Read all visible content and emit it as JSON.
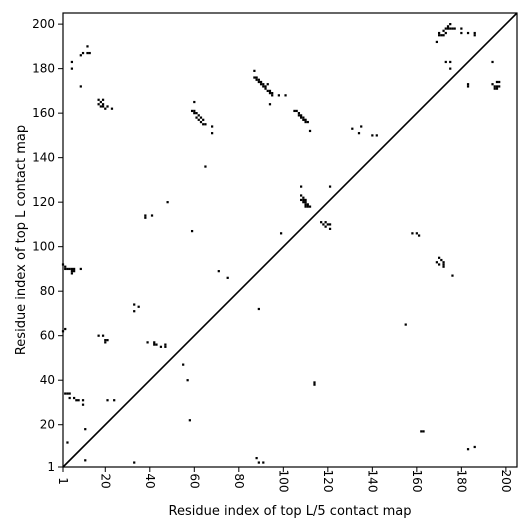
{
  "chart_data": {
    "type": "scatter",
    "title": "",
    "xlabel": "Residue index of top L/5 contact map",
    "ylabel": "Residue index of top L contact map",
    "xlim": [
      1,
      205
    ],
    "ylim": [
      1,
      205
    ],
    "xticks": [
      "1",
      "20",
      "40",
      "60",
      "80",
      "100",
      "120",
      "140",
      "160",
      "180",
      "200"
    ],
    "xtick_values": [
      1,
      20,
      40,
      60,
      80,
      100,
      120,
      140,
      160,
      180,
      200
    ],
    "yticks": [
      "1",
      "20",
      "40",
      "60",
      "80",
      "100",
      "120",
      "140",
      "160",
      "180",
      "200"
    ],
    "ytick_values": [
      1,
      20,
      40,
      60,
      80,
      100,
      120,
      140,
      160,
      180,
      200
    ],
    "grid": false,
    "marker_color": "#000000",
    "diagonal": {
      "from": [
        1,
        1
      ],
      "to": [
        205,
        205
      ]
    },
    "points": [
      [
        5,
        183
      ],
      [
        5,
        180
      ],
      [
        9,
        186
      ],
      [
        9,
        172
      ],
      [
        12,
        190
      ],
      [
        12,
        187
      ],
      [
        13,
        187
      ],
      [
        10,
        187
      ],
      [
        17,
        166
      ],
      [
        17,
        164
      ],
      [
        18,
        165
      ],
      [
        18,
        163
      ],
      [
        19,
        164
      ],
      [
        19,
        163
      ],
      [
        20,
        162
      ],
      [
        21,
        163
      ],
      [
        23,
        162
      ],
      [
        19,
        166
      ],
      [
        60,
        161
      ],
      [
        60,
        160
      ],
      [
        61,
        160
      ],
      [
        61,
        158
      ],
      [
        62,
        159
      ],
      [
        62,
        157
      ],
      [
        63,
        158
      ],
      [
        63,
        156
      ],
      [
        64,
        157
      ],
      [
        64,
        155
      ],
      [
        65,
        155
      ],
      [
        59,
        161
      ],
      [
        60,
        165
      ],
      [
        68,
        154
      ],
      [
        68,
        151
      ],
      [
        65,
        136
      ],
      [
        87,
        179
      ],
      [
        87,
        176
      ],
      [
        88,
        176
      ],
      [
        88,
        175
      ],
      [
        89,
        175
      ],
      [
        89,
        174
      ],
      [
        90,
        174
      ],
      [
        90,
        173
      ],
      [
        91,
        173
      ],
      [
        91,
        172
      ],
      [
        92,
        172
      ],
      [
        92,
        171
      ],
      [
        93,
        173
      ],
      [
        93,
        170
      ],
      [
        94,
        170
      ],
      [
        94,
        169
      ],
      [
        95,
        169
      ],
      [
        95,
        168
      ],
      [
        98,
        168
      ],
      [
        101,
        168
      ],
      [
        94,
        164
      ],
      [
        105,
        161
      ],
      [
        106,
        161
      ],
      [
        107,
        160
      ],
      [
        107,
        159
      ],
      [
        108,
        159
      ],
      [
        108,
        158
      ],
      [
        109,
        158
      ],
      [
        109,
        157
      ],
      [
        110,
        157
      ],
      [
        110,
        156
      ],
      [
        111,
        156
      ],
      [
        112,
        152
      ],
      [
        131,
        153
      ],
      [
        134,
        151
      ],
      [
        135,
        154
      ],
      [
        140,
        150
      ],
      [
        169,
        192
      ],
      [
        170,
        196
      ],
      [
        170,
        195
      ],
      [
        171,
        195
      ],
      [
        172,
        195
      ],
      [
        172,
        197
      ],
      [
        173,
        198
      ],
      [
        173,
        196
      ],
      [
        174,
        199
      ],
      [
        174,
        198
      ],
      [
        175,
        200
      ],
      [
        175,
        198
      ],
      [
        176,
        198
      ],
      [
        177,
        198
      ],
      [
        180,
        198
      ],
      [
        180,
        196
      ],
      [
        183,
        196
      ],
      [
        186,
        196
      ],
      [
        186,
        195
      ],
      [
        173,
        183
      ],
      [
        175,
        183
      ],
      [
        175,
        180
      ],
      [
        183,
        173
      ],
      [
        183,
        172
      ],
      [
        194,
        183
      ],
      [
        194,
        173
      ],
      [
        195,
        172
      ],
      [
        196,
        172
      ],
      [
        196,
        174
      ],
      [
        197,
        174
      ],
      [
        197,
        172
      ],
      [
        196,
        171
      ],
      [
        195,
        171
      ],
      [
        108,
        127
      ],
      [
        108,
        123
      ],
      [
        108,
        121
      ],
      [
        109,
        122
      ],
      [
        109,
        121
      ],
      [
        110,
        121
      ],
      [
        110,
        120
      ],
      [
        109,
        120
      ],
      [
        110,
        119
      ],
      [
        111,
        119
      ],
      [
        111,
        118
      ],
      [
        110,
        118
      ],
      [
        112,
        118
      ],
      [
        121,
        127
      ],
      [
        117,
        111
      ],
      [
        118,
        110
      ],
      [
        119,
        111
      ],
      [
        119,
        109
      ],
      [
        120,
        110
      ],
      [
        121,
        110
      ],
      [
        121,
        108
      ],
      [
        38,
        114
      ],
      [
        38,
        113
      ],
      [
        41,
        114
      ],
      [
        48,
        120
      ],
      [
        1,
        92
      ],
      [
        2,
        91
      ],
      [
        2,
        90
      ],
      [
        3,
        90
      ],
      [
        4,
        90
      ],
      [
        5,
        90
      ],
      [
        5,
        89
      ],
      [
        5,
        88
      ],
      [
        6,
        89
      ],
      [
        6,
        90
      ],
      [
        9,
        90
      ],
      [
        1,
        62
      ],
      [
        2,
        63
      ],
      [
        33,
        74
      ],
      [
        35,
        73
      ],
      [
        33,
        71
      ],
      [
        17,
        60
      ],
      [
        19,
        60
      ],
      [
        20,
        58
      ],
      [
        20,
        57
      ],
      [
        21,
        58
      ],
      [
        39,
        57
      ],
      [
        42,
        57
      ],
      [
        42,
        56
      ],
      [
        43,
        56
      ],
      [
        45,
        55
      ],
      [
        47,
        56
      ],
      [
        47,
        55
      ],
      [
        2,
        34
      ],
      [
        3,
        34
      ],
      [
        4,
        34
      ],
      [
        4,
        32
      ],
      [
        6,
        32
      ],
      [
        7,
        31
      ],
      [
        8,
        31
      ],
      [
        10,
        31
      ],
      [
        10,
        29
      ],
      [
        3,
        12
      ],
      [
        11,
        18
      ],
      [
        11,
        4
      ],
      [
        21,
        31
      ],
      [
        24,
        31
      ],
      [
        33,
        3
      ],
      [
        55,
        47
      ],
      [
        57,
        40
      ],
      [
        58,
        22
      ],
      [
        59,
        107
      ],
      [
        71,
        89
      ],
      [
        75,
        86
      ],
      [
        88,
        5
      ],
      [
        89,
        72
      ],
      [
        89,
        3
      ],
      [
        91,
        3
      ],
      [
        99,
        106
      ],
      [
        114,
        39
      ],
      [
        114,
        38
      ],
      [
        142,
        150
      ],
      [
        155,
        65
      ],
      [
        158,
        106
      ],
      [
        160,
        106
      ],
      [
        161,
        105
      ],
      [
        162,
        17
      ],
      [
        163,
        17
      ],
      [
        169,
        93
      ],
      [
        170,
        92
      ],
      [
        170,
        95
      ],
      [
        171,
        94
      ],
      [
        172,
        93
      ],
      [
        172,
        92
      ],
      [
        172,
        91
      ],
      [
        176,
        87
      ],
      [
        183,
        9
      ],
      [
        186,
        10
      ]
    ]
  }
}
